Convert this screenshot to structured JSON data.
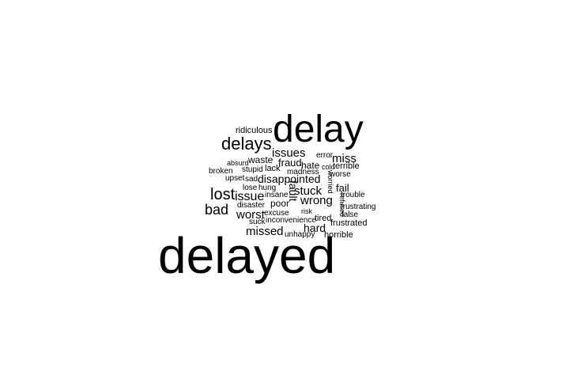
{
  "chart_data": {
    "type": "wordcloud",
    "title": "",
    "words": [
      {
        "text": "delayed",
        "weight": 100
      },
      {
        "text": "delay",
        "weight": 72
      },
      {
        "text": "delays",
        "weight": 36
      },
      {
        "text": "lost",
        "weight": 34
      },
      {
        "text": "bad",
        "weight": 30
      },
      {
        "text": "issue",
        "weight": 27
      },
      {
        "text": "missed",
        "weight": 25
      },
      {
        "text": "worst",
        "weight": 24
      },
      {
        "text": "stuck",
        "weight": 24
      },
      {
        "text": "wrong",
        "weight": 24
      },
      {
        "text": "issues",
        "weight": 23
      },
      {
        "text": "miss",
        "weight": 23
      },
      {
        "text": "disappointed",
        "weight": 22
      },
      {
        "text": "hard",
        "weight": 22
      },
      {
        "text": "fraud",
        "weight": 21
      },
      {
        "text": "fail",
        "weight": 20
      },
      {
        "text": "waste",
        "weight": 20
      },
      {
        "text": "poor",
        "weight": 20
      },
      {
        "text": "hate",
        "weight": 19
      },
      {
        "text": "ridiculous",
        "weight": 18
      },
      {
        "text": "terrible",
        "weight": 17
      },
      {
        "text": "frustrated",
        "weight": 17
      },
      {
        "text": "horrible",
        "weight": 17
      },
      {
        "text": "tired",
        "weight": 17
      },
      {
        "text": "lack",
        "weight": 17
      },
      {
        "text": "excuse",
        "weight": 16
      },
      {
        "text": "unhappy",
        "weight": 15
      },
      {
        "text": "inconvenience",
        "weight": 15
      },
      {
        "text": "hung",
        "weight": 15
      },
      {
        "text": "lose",
        "weight": 15
      },
      {
        "text": "stupid",
        "weight": 15
      },
      {
        "text": "disaster",
        "weight": 15
      },
      {
        "text": "insane",
        "weight": 15
      },
      {
        "text": "madness",
        "weight": 15
      },
      {
        "text": "worse",
        "weight": 15
      },
      {
        "text": "broken",
        "weight": 15
      },
      {
        "text": "absurd",
        "weight": 14
      },
      {
        "text": "upset",
        "weight": 15
      },
      {
        "text": "sad",
        "weight": 15
      },
      {
        "text": "error",
        "weight": 14
      },
      {
        "text": "cold",
        "weight": 14
      },
      {
        "text": "trouble",
        "weight": 14
      },
      {
        "text": "frustrating",
        "weight": 14
      },
      {
        "text": "false",
        "weight": 14
      },
      {
        "text": "suck",
        "weight": 14
      },
      {
        "text": "risk",
        "weight": 13
      },
      {
        "text": "fault",
        "weight": 17
      },
      {
        "text": "worried",
        "weight": 13
      },
      {
        "text": "refused",
        "weight": 13
      }
    ]
  }
}
